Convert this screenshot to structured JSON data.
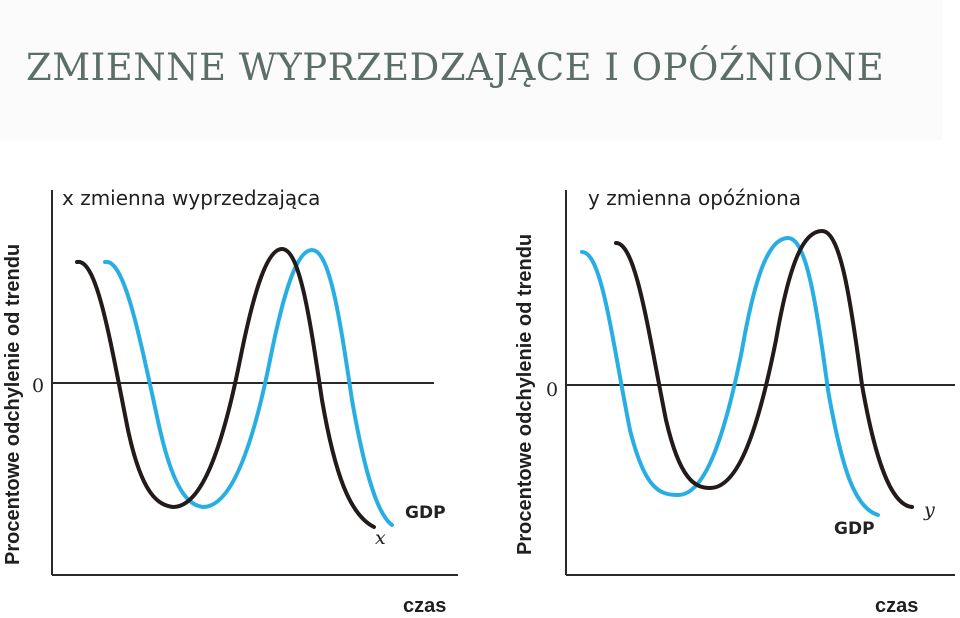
{
  "slide": {
    "title": "ZMIENNE WYPRZEDZAJĄCE I OPÓŹNIONE",
    "colors": {
      "gdp": "#29aee3",
      "variable": "#231a1a",
      "axis": "#2a2a2a",
      "title": "#5c6f66"
    }
  },
  "panels": [
    {
      "title": "x zmienna wyprzedzająca",
      "y_axis_label": "Procentowe odchylenie od trendu",
      "x_axis_label": "czas",
      "zero_label": "0",
      "gdp_label": "GDP",
      "variable_label": "x",
      "relation": "variable leads GDP"
    },
    {
      "title": "y zmienna opóźniona",
      "y_axis_label": "Procentowe odchylenie od trendu",
      "x_axis_label": "czas",
      "zero_label": "0",
      "gdp_label": "GDP",
      "variable_label": "y",
      "relation": "variable lags GDP"
    }
  ]
}
